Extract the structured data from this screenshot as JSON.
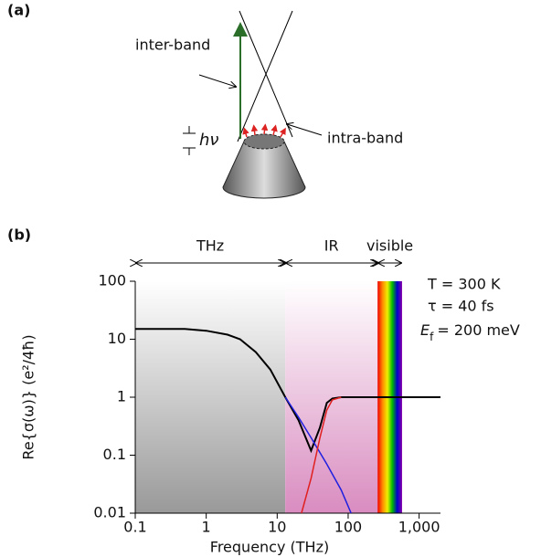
{
  "panel_a": {
    "label": "(a)",
    "inter_band": "inter-band",
    "intra_band": "intra-band",
    "h_nu": "hν"
  },
  "chart_data": {
    "type": "line",
    "panel_label": "(b)",
    "x_label": "Frequency (THz)",
    "y_label": "Re{σ(ω)}  (e²/4ħ)",
    "log_x": true,
    "log_y": true,
    "xlim": [
      0.1,
      2000
    ],
    "ylim": [
      0.01,
      100
    ],
    "xticks": [
      0.1,
      1,
      10,
      100,
      {
        "value": 1000,
        "label": "1,000"
      }
    ],
    "yticks": [
      0.01,
      0.1,
      1,
      10,
      100
    ],
    "regions": [
      {
        "name": "THz",
        "range": [
          0.1,
          13
        ]
      },
      {
        "name": "IR",
        "range": [
          13,
          260
        ]
      },
      {
        "name": "visible",
        "range": [
          260,
          575
        ]
      }
    ],
    "annotations": {
      "temperature": "T = 300 K",
      "tau": "τ = 40 fs",
      "fermi": [
        "E",
        "f",
        "= 200 meV"
      ]
    },
    "series": [
      {
        "color": "#000000",
        "x": [
          0.1,
          0.5,
          1,
          2,
          3,
          5,
          8,
          13,
          20,
          30,
          40,
          50,
          60,
          80,
          200,
          2000
        ],
        "values": [
          15,
          15,
          14,
          12,
          10,
          6,
          3,
          1,
          0.4,
          0.12,
          0.3,
          0.8,
          0.95,
          1,
          1,
          1
        ]
      },
      {
        "color": "#1f1fe0",
        "x": [
          13,
          20,
          30,
          50,
          80,
          110
        ],
        "values": [
          1,
          0.45,
          0.2,
          0.07,
          0.025,
          0.01
        ]
      },
      {
        "color": "#e01f1f",
        "x": [
          22,
          30,
          40,
          50,
          60,
          80
        ],
        "values": [
          0.01,
          0.04,
          0.2,
          0.6,
          0.9,
          1
        ]
      }
    ]
  }
}
